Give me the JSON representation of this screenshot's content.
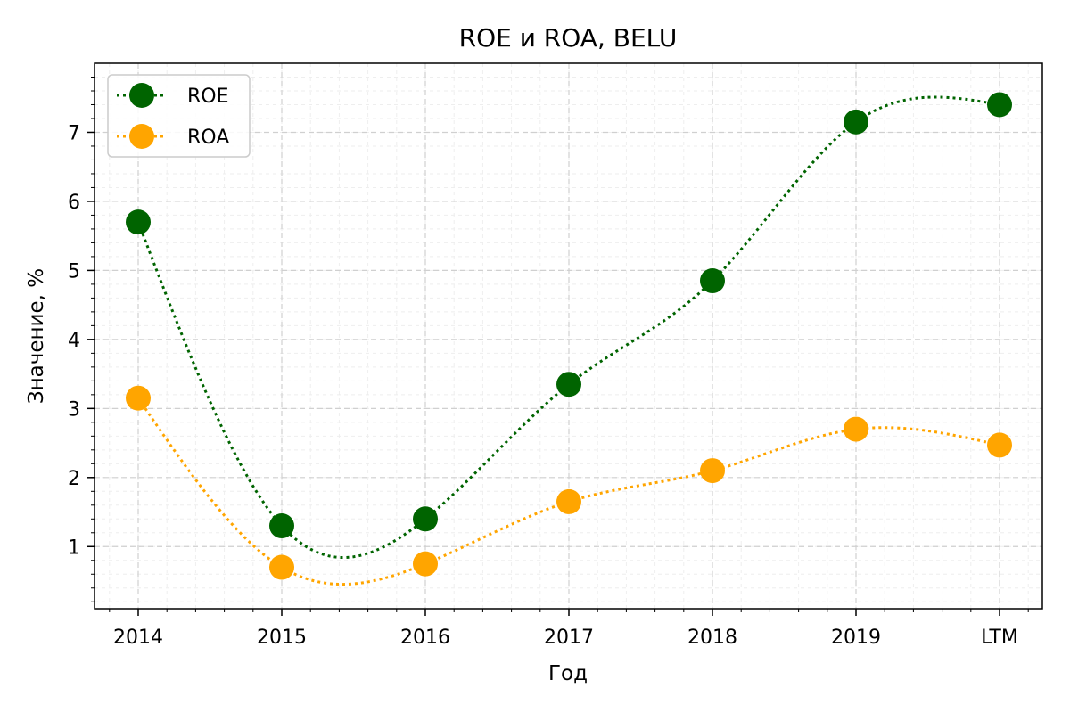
{
  "chart_data": {
    "type": "line",
    "title": "ROE и ROA, BELU",
    "xlabel": "Год",
    "ylabel": "Значение, %",
    "categories": [
      "2014",
      "2015",
      "2016",
      "2017",
      "2018",
      "2019",
      "LTM"
    ],
    "series": [
      {
        "name": "ROE",
        "color": "#006400",
        "values": [
          5.7,
          1.3,
          1.4,
          3.35,
          4.85,
          7.15,
          7.4
        ]
      },
      {
        "name": "ROA",
        "color": "#FFA500",
        "values": [
          3.15,
          0.7,
          0.75,
          1.65,
          2.1,
          2.7,
          2.47
        ]
      }
    ],
    "yticks": [
      1,
      2,
      3,
      4,
      5,
      6,
      7
    ],
    "ylim": [
      0.1,
      8.0
    ],
    "line_style": "dotted-smooth",
    "grid": true,
    "legend_position": "top-left"
  }
}
